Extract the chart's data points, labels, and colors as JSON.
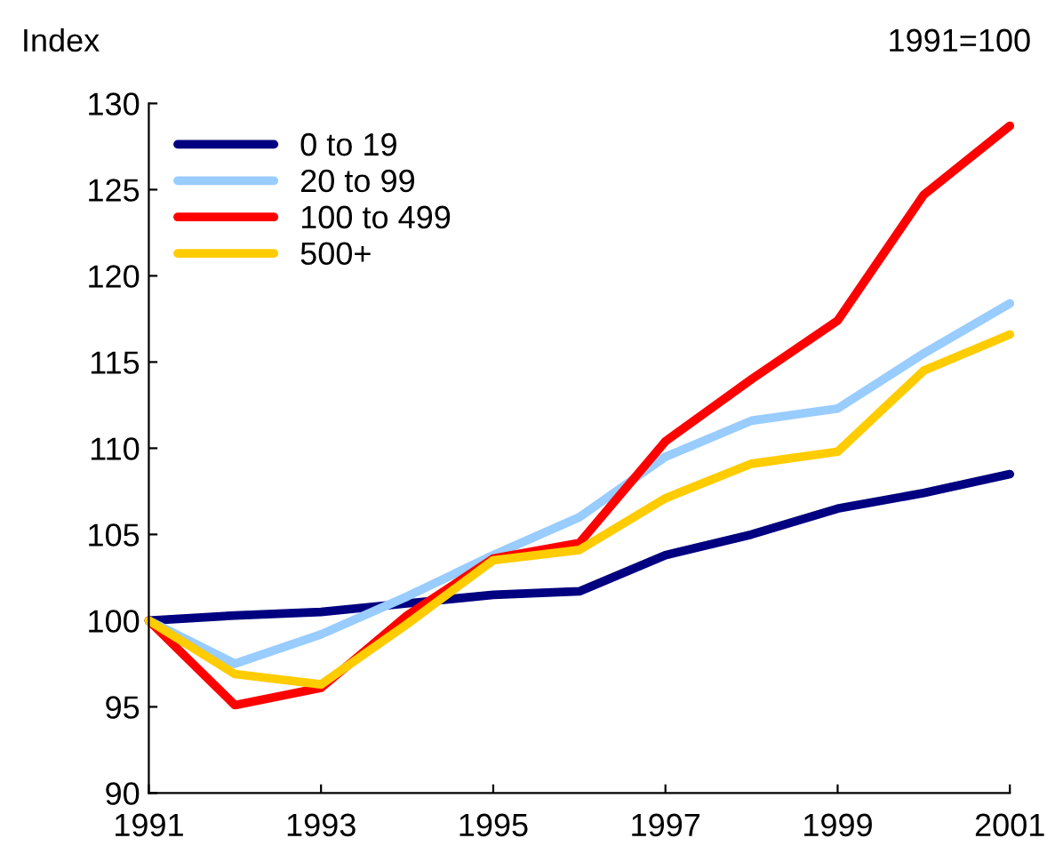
{
  "chart_data": {
    "type": "line",
    "ylabel": "Index",
    "annotations": [
      "1991=100"
    ],
    "x": [
      1991,
      1992,
      1993,
      1994,
      1995,
      1996,
      1997,
      1998,
      1999,
      2000,
      2001
    ],
    "series": [
      {
        "name": "0 to 19",
        "color": "#000080",
        "values": [
          100,
          100.3,
          100.5,
          101.0,
          101.5,
          101.7,
          103.8,
          105.0,
          106.5,
          107.4,
          108.5
        ]
      },
      {
        "name": "20 to 99",
        "color": "#99ccff",
        "values": [
          100,
          97.5,
          99.2,
          101.4,
          103.8,
          106.0,
          109.5,
          111.6,
          112.3,
          115.5,
          118.4
        ]
      },
      {
        "name": "100 to 499",
        "color": "#ff0000",
        "values": [
          100,
          95.1,
          96.1,
          100.3,
          103.6,
          104.5,
          110.4,
          114.0,
          117.4,
          124.7,
          128.7
        ]
      },
      {
        "name": "500+",
        "color": "#ffcc00",
        "values": [
          100,
          96.9,
          96.3,
          99.8,
          103.5,
          104.1,
          107.1,
          109.1,
          109.8,
          114.5,
          116.6
        ]
      }
    ],
    "xlim": [
      1991,
      2001
    ],
    "xticks": [
      1991,
      1993,
      1995,
      1997,
      1999,
      2001
    ],
    "ylim": [
      90,
      130
    ],
    "yticks": [
      90,
      95,
      100,
      105,
      110,
      115,
      120,
      125,
      130
    ],
    "grid": false,
    "legend": "top left",
    "marker": "none",
    "line_style": "solid"
  }
}
